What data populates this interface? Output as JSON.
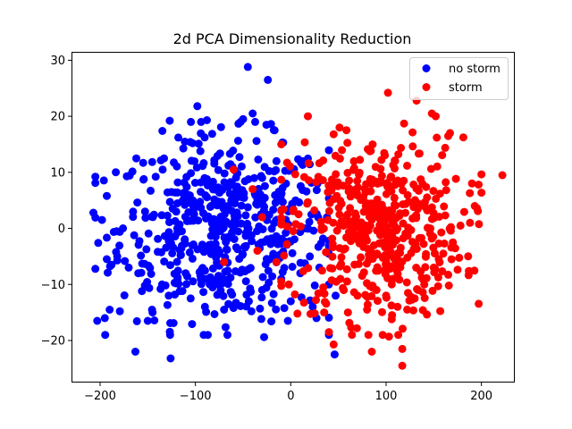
{
  "chart_data": {
    "type": "scatter",
    "title": "2d PCA Dimensionality Reduction",
    "xlabel": "",
    "ylabel": "",
    "xlim": [
      -230,
      235
    ],
    "ylim": [
      -27.5,
      31.5
    ],
    "xticks": [
      -200,
      -100,
      0,
      100,
      200
    ],
    "yticks": [
      -20,
      -10,
      0,
      10,
      20,
      30
    ],
    "xtick_labels": [
      "−200",
      "−100",
      "0",
      "100",
      "200"
    ],
    "ytick_labels": [
      "−20",
      "−10",
      "0",
      "10",
      "20",
      "30"
    ],
    "grid": false,
    "legend_position": "top-right",
    "colors": {
      "no storm": "#0000ff",
      "storm": "#ff0000"
    },
    "series": [
      {
        "name": "no storm",
        "color": "#0000ff",
        "cluster": {
          "x_center": -70,
          "x_spread": 55,
          "y_center": 0,
          "y_spread": 8,
          "count": 520
        },
        "points": [
          [
            -45,
            28.8
          ],
          [
            -24,
            26.5
          ],
          [
            -98,
            21.8
          ],
          [
            -40,
            20.5
          ],
          [
            -50,
            19.5
          ],
          [
            -127,
            19.2
          ],
          [
            -88,
            19.3
          ],
          [
            -17,
            17.5
          ],
          [
            -118,
            16.2
          ],
          [
            -103,
            15.2
          ],
          [
            -162,
            12.5
          ],
          [
            -133,
            12.5
          ],
          [
            -172,
            9.3
          ],
          [
            -193,
            5.8
          ],
          [
            -207,
            2.8
          ],
          [
            -198,
            1.5
          ],
          [
            -176,
            0.0
          ],
          [
            -202,
            -2.6
          ],
          [
            -193,
            -5.5
          ],
          [
            -188,
            -6.5
          ],
          [
            -182,
            -5.0
          ],
          [
            -170,
            -7.0
          ],
          [
            -160,
            -8.0
          ],
          [
            -153,
            -10.2
          ],
          [
            -135,
            -10.0
          ],
          [
            -128,
            -12.0
          ],
          [
            -105,
            -12.5
          ],
          [
            -90,
            -14.0
          ],
          [
            -70,
            -14.5
          ],
          [
            -58,
            -13.5
          ],
          [
            -44,
            -13.0
          ],
          [
            -28,
            -19.4
          ],
          [
            -3,
            -16.5
          ],
          [
            -163,
            -22.0
          ],
          [
            -126,
            -23.2
          ],
          [
            -150,
            -16.5
          ],
          [
            -145,
            -15.0
          ],
          [
            -190,
            -14.5
          ],
          [
            -203,
            -16.5
          ],
          [
            -195,
            -16.0
          ],
          [
            -80,
            -15.3
          ],
          [
            -60,
            -14.2
          ],
          [
            -30,
            -11.0
          ],
          [
            -10,
            -9.0
          ],
          [
            0,
            -13.0
          ],
          [
            10,
            -8.0
          ],
          [
            20,
            -5.0
          ],
          [
            15,
            0.0
          ],
          [
            5,
            5.0
          ],
          [
            -5,
            8.0
          ],
          [
            -15,
            12.0
          ],
          [
            -8,
            15.3
          ],
          [
            -30,
            9.0
          ],
          [
            46,
            -22.5
          ],
          [
            47,
            -12.0
          ],
          [
            40,
            -10.0
          ],
          [
            27,
            -16.0
          ],
          [
            23,
            -14.0
          ],
          [
            30,
            -7.0
          ],
          [
            38,
            2.0
          ],
          [
            28,
            8.0
          ]
        ]
      },
      {
        "name": "storm",
        "color": "#ff0000",
        "cluster": {
          "x_center": 90,
          "x_spread": 45,
          "y_center": 0,
          "y_spread": 8,
          "count": 480
        },
        "points": [
          [
            102,
            24.2
          ],
          [
            132,
            22.8
          ],
          [
            148,
            20.5
          ],
          [
            152,
            20.0
          ],
          [
            18,
            20.0
          ],
          [
            45,
            16.8
          ],
          [
            167,
            17.0
          ],
          [
            222,
            9.5
          ],
          [
            197,
            7.8
          ],
          [
            193,
            4.0
          ],
          [
            188,
            1.0
          ],
          [
            178,
            0.5
          ],
          [
            170,
            -2.5
          ],
          [
            160,
            -4.5
          ],
          [
            150,
            -7.0
          ],
          [
            140,
            -10.0
          ],
          [
            130,
            -12.5
          ],
          [
            112,
            -14.0
          ],
          [
            100,
            -12.0
          ],
          [
            90,
            -11.0
          ],
          [
            80,
            -14.5
          ],
          [
            70,
            -12.0
          ],
          [
            60,
            -15.0
          ],
          [
            40,
            -18.5
          ],
          [
            45,
            -20.7
          ],
          [
            85,
            -22.0
          ],
          [
            117,
            -21.5
          ],
          [
            117,
            -24.5
          ],
          [
            103,
            -19.3
          ],
          [
            35,
            -15.0
          ],
          [
            7,
            -15.2
          ],
          [
            -2,
            -10.0
          ],
          [
            -15,
            -6.0
          ],
          [
            -30,
            2.0
          ],
          [
            -40,
            7.0
          ],
          [
            -10,
            15.0
          ],
          [
            -60,
            10.5
          ],
          [
            -70,
            -6.0
          ],
          [
            -35,
            -4.0
          ]
        ]
      }
    ]
  }
}
